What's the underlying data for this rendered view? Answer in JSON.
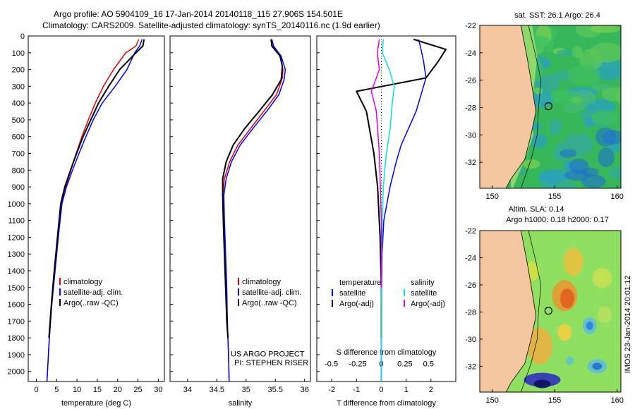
{
  "header": {
    "line1": "Argo profile: AO 5904109_16 17-Jan-2014 20140118_115 27.906S 154.501E",
    "line2": "Climatology: CARS2009. Satellite-adjusted climatology: synTS_20140116.nc (1.9d earlier)"
  },
  "colors": {
    "climatology": "#e00000",
    "satellite": "#0000ff",
    "argo": "#000000",
    "sal_satellite": "#00e5e5",
    "sal_argo": "#e000e0",
    "land": "#f5c7a0"
  },
  "depth_ticks": [
    "0",
    "100",
    "200",
    "300",
    "400",
    "500",
    "600",
    "700",
    "800",
    "900",
    "1000",
    "1100",
    "1200",
    "1300",
    "1400",
    "1500",
    "1600",
    "1700",
    "1800",
    "1900",
    "2000"
  ],
  "chart_data": [
    {
      "type": "line",
      "xlabel": "temperature (deg C)",
      "xticks": [
        "0",
        "5",
        "10",
        "15",
        "20",
        "25",
        "30"
      ],
      "xlim": [
        -2,
        31.5
      ],
      "ylim": [
        0,
        2060
      ],
      "legend": [
        "climatology",
        "satellite-adj. clim.",
        "Argo(..raw -QC)"
      ],
      "series": [
        {
          "name": "climatology",
          "color": "#e00000",
          "points": [
            [
              25.2,
              20
            ],
            [
              24.5,
              60
            ],
            [
              22,
              100
            ],
            [
              19,
              200
            ],
            [
              16.5,
              300
            ],
            [
              14.5,
              400
            ],
            [
              12.8,
              500
            ],
            [
              11.2,
              600
            ],
            [
              9.8,
              700
            ],
            [
              8.5,
              800
            ],
            [
              7.2,
              900
            ],
            [
              6.2,
              1000
            ],
            [
              5.4,
              1200
            ],
            [
              4.6,
              1400
            ],
            [
              3.8,
              1600
            ],
            [
              3.2,
              1800
            ],
            [
              2.6,
              2060
            ]
          ]
        },
        {
          "name": "satellite-adj. clim.",
          "color": "#0000ff",
          "points": [
            [
              26,
              20
            ],
            [
              25.4,
              60
            ],
            [
              24.2,
              100
            ],
            [
              22.3,
              200
            ],
            [
              19.4,
              300
            ],
            [
              16.2,
              400
            ],
            [
              14,
              500
            ],
            [
              12.2,
              600
            ],
            [
              10.5,
              700
            ],
            [
              8.9,
              800
            ],
            [
              7.4,
              900
            ],
            [
              6.3,
              1000
            ],
            [
              5.4,
              1200
            ],
            [
              4.6,
              1400
            ],
            [
              3.8,
              1600
            ],
            [
              3.2,
              1800
            ],
            [
              2.6,
              2060
            ]
          ]
        },
        {
          "name": "Argo(..raw -QC)",
          "color": "#000000",
          "points": [
            [
              26.5,
              20
            ],
            [
              26.2,
              60
            ],
            [
              24.5,
              100
            ],
            [
              20.5,
              200
            ],
            [
              17.8,
              300
            ],
            [
              15.3,
              400
            ],
            [
              13.4,
              500
            ],
            [
              11.5,
              600
            ],
            [
              9.9,
              700
            ],
            [
              8.4,
              800
            ],
            [
              7,
              900
            ],
            [
              6,
              1000
            ],
            [
              5.2,
              1200
            ],
            [
              4.4,
              1400
            ],
            [
              3.7,
              1600
            ],
            [
              3.1,
              1800
            ]
          ]
        }
      ]
    },
    {
      "type": "line",
      "xlabel": "salinity",
      "xticks": [
        "34",
        "34.5",
        "35",
        "35.5",
        "36"
      ],
      "xlim": [
        33.7,
        36.1
      ],
      "ylim": [
        0,
        2060
      ],
      "legend": [
        "climatology",
        "satellite-adj. clim.",
        "Argo(..raw -QC)"
      ],
      "series": [
        {
          "name": "climatology",
          "color": "#e00000",
          "points": [
            [
              35.42,
              20
            ],
            [
              35.45,
              60
            ],
            [
              35.58,
              120
            ],
            [
              35.63,
              200
            ],
            [
              35.62,
              250
            ],
            [
              35.52,
              350
            ],
            [
              35.3,
              450
            ],
            [
              35.08,
              550
            ],
            [
              34.86,
              650
            ],
            [
              34.72,
              750
            ],
            [
              34.63,
              850
            ],
            [
              34.6,
              950
            ],
            [
              34.62,
              1100
            ],
            [
              34.64,
              1300
            ],
            [
              34.66,
              1500
            ],
            [
              34.68,
              1700
            ],
            [
              34.7,
              1900
            ],
            [
              34.71,
              2060
            ]
          ]
        },
        {
          "name": "satellite-adj. clim.",
          "color": "#0000ff",
          "points": [
            [
              35.44,
              20
            ],
            [
              35.47,
              60
            ],
            [
              35.6,
              120
            ],
            [
              35.67,
              200
            ],
            [
              35.65,
              260
            ],
            [
              35.56,
              350
            ],
            [
              35.35,
              450
            ],
            [
              35.12,
              550
            ],
            [
              34.9,
              650
            ],
            [
              34.75,
              750
            ],
            [
              34.66,
              850
            ],
            [
              34.62,
              950
            ],
            [
              34.63,
              1100
            ],
            [
              34.65,
              1300
            ],
            [
              34.67,
              1500
            ],
            [
              34.68,
              1700
            ],
            [
              34.7,
              1900
            ],
            [
              34.71,
              2060
            ]
          ]
        },
        {
          "name": "Argo(..raw -QC)",
          "color": "#000000",
          "points": [
            [
              35.43,
              20
            ],
            [
              35.44,
              60
            ],
            [
              35.58,
              120
            ],
            [
              35.62,
              180
            ],
            [
              35.6,
              260
            ],
            [
              35.45,
              350
            ],
            [
              35.22,
              450
            ],
            [
              34.98,
              550
            ],
            [
              34.78,
              650
            ],
            [
              34.66,
              750
            ],
            [
              34.6,
              850
            ],
            [
              34.6,
              950
            ],
            [
              34.61,
              1100
            ],
            [
              34.63,
              1300
            ],
            [
              34.65,
              1500
            ],
            [
              34.67,
              1700
            ],
            [
              34.69,
              1800
            ]
          ]
        }
      ],
      "annotations": [
        "US ARGO PROJECT",
        "PI: STEPHEN RISER"
      ]
    },
    {
      "type": "line",
      "xlabel": "T difference from climatology",
      "xticks": [
        "-2",
        "-1",
        "0",
        "1",
        "2"
      ],
      "top_xlabel": "S difference from climatology",
      "top_xticks": [
        "-0.5",
        "-0.25",
        "0",
        "0.25",
        "0.5"
      ],
      "xlim": [
        -2.6,
        3
      ],
      "ylim": [
        0,
        2060
      ],
      "legend_temperature": [
        "temperature",
        "satellite",
        "Argo(-adj)"
      ],
      "legend_salinity": [
        "salinity",
        "satellite",
        "Argo(-adj)"
      ],
      "series": [
        {
          "name": "satellite",
          "color": "#0000ff",
          "points": [
            [
              1.5,
              20
            ],
            [
              1.6,
              80
            ],
            [
              1.7,
              150
            ],
            [
              1.8,
              250
            ],
            [
              1.6,
              350
            ],
            [
              1.4,
              450
            ],
            [
              1.1,
              550
            ],
            [
              0.8,
              650
            ],
            [
              0.6,
              750
            ],
            [
              0.35,
              900
            ],
            [
              0.1,
              1100
            ],
            [
              0.03,
              1300
            ],
            [
              0,
              1600
            ],
            [
              0,
              2060
            ]
          ]
        },
        {
          "name": "Argo(-adj)",
          "color": "#000000",
          "points": [
            [
              1.3,
              20
            ],
            [
              2.6,
              80
            ],
            [
              2.3,
              150
            ],
            [
              1.8,
              250
            ],
            [
              -1,
              330
            ],
            [
              -0.6,
              450
            ],
            [
              -0.3,
              700
            ],
            [
              -0.15,
              900
            ],
            [
              -0.05,
              1200
            ],
            [
              0,
              1500
            ],
            [
              0,
              1800
            ]
          ]
        },
        {
          "name": "satellite",
          "color": "#00e5e5",
          "points": [
            [
              0.02,
              20
            ],
            [
              0.01,
              100
            ],
            [
              0.08,
              200
            ],
            [
              0.13,
              300
            ],
            [
              0.11,
              400
            ],
            [
              0.09,
              550
            ],
            [
              0.05,
              700
            ],
            [
              0.02,
              900
            ],
            [
              0.01,
              1100
            ],
            [
              0,
              1400
            ],
            [
              0,
              2060
            ]
          ]
        },
        {
          "name": "Argo(-adj)",
          "color": "#e000e0",
          "points": [
            [
              -0.02,
              20
            ],
            [
              -0.04,
              100
            ],
            [
              -0.02,
              200
            ],
            [
              -0.1,
              330
            ],
            [
              -0.05,
              450
            ],
            [
              -0.02,
              700
            ],
            [
              -0.01,
              900
            ],
            [
              0,
              1100
            ],
            [
              0,
              1500
            ]
          ]
        }
      ]
    },
    {
      "type": "heatmap",
      "title": "sat. SST: 26.1  Argo: 26.4",
      "xticks": [
        "150",
        "155",
        "160"
      ],
      "yticks": [
        "-22",
        "-24",
        "-26",
        "-28",
        "-30",
        "-32"
      ],
      "xlim": [
        149,
        160.3
      ],
      "ylim": [
        -33.9,
        -22
      ]
    },
    {
      "type": "heatmap",
      "title_line1": "Altim. SLA: 0.14",
      "title_line2": "Argo h1000: 0.18  h2000: 0.17",
      "xticks": [
        "150",
        "155",
        "160"
      ],
      "yticks": [
        "-22",
        "-24",
        "-26",
        "-28",
        "-30",
        "-32"
      ],
      "xlim": [
        149,
        160.3
      ],
      "ylim": [
        -33.9,
        -22
      ]
    }
  ],
  "watermark": "IMOS 23-Jan-2014 20:01:12"
}
